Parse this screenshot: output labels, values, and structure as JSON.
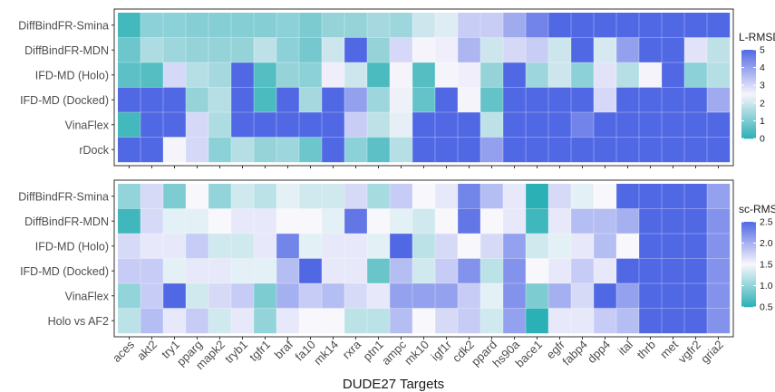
{
  "chart_data": [
    {
      "type": "heatmap",
      "panel": "top",
      "legend_title": "L-RMSD",
      "color_scale": {
        "min": 0,
        "max": 5,
        "low_color": "#2bb0b5",
        "mid_color": "#f6f4fb",
        "high_color": "#5168e4",
        "mid_value": 2.5
      },
      "legend_ticks": [
        0,
        1,
        2,
        3,
        4,
        5
      ],
      "rows": [
        "DiffBindFR-Smina",
        "DiffBindFR-MDN",
        "IFD-MD (Holo)",
        "IFD-MD (Docked)",
        "VinaFlex",
        "rDock"
      ],
      "columns": [
        "aces",
        "akt2",
        "try1",
        "pparg",
        "mapk2",
        "tryb1",
        "tgfr1",
        "braf",
        "fa10",
        "mk14",
        "rxra",
        "ptn1",
        "ampc",
        "mk10",
        "igf1r",
        "cdk2",
        "ppard",
        "hs90a",
        "bace1",
        "egfr",
        "fabp4",
        "dpp4",
        "ital",
        "thrb",
        "met",
        "vgfr2",
        "gria2"
      ],
      "values": [
        [
          0.3,
          1.2,
          1.2,
          1.1,
          1.1,
          1.1,
          1.1,
          1.2,
          1.0,
          1.3,
          1.3,
          1.5,
          1.4,
          2.0,
          2.2,
          3.2,
          3.2,
          3.8,
          4.5,
          5,
          5,
          5,
          5,
          5,
          5,
          5,
          5
        ],
        [
          0.8,
          1.6,
          1.4,
          1.3,
          1.3,
          1.3,
          1.8,
          1.2,
          0.9,
          2.0,
          5,
          1.3,
          3.0,
          2.5,
          2.6,
          3.6,
          2.0,
          3.0,
          3.2,
          2.0,
          5,
          2.1,
          4.0,
          5,
          5,
          2.8,
          1.8
        ],
        [
          0.6,
          0.5,
          3.0,
          1.7,
          1.5,
          5,
          0.5,
          1.3,
          1.2,
          2.6,
          2.0,
          0.4,
          2.5,
          0.5,
          2.5,
          2.6,
          1.3,
          5,
          1.4,
          2.0,
          1.2,
          2.8,
          1.7,
          2.5,
          5,
          1.2,
          1.7
        ],
        [
          5,
          5,
          5,
          1.3,
          1.7,
          5,
          0.4,
          5,
          1.5,
          5,
          4.0,
          1.4,
          2.4,
          0.7,
          5,
          2.5,
          0.7,
          5,
          5,
          5,
          5,
          3.0,
          5,
          5,
          5,
          5,
          3.8
        ],
        [
          0.3,
          5,
          5,
          3.0,
          1.6,
          5,
          5,
          5,
          5,
          5,
          3.2,
          1.8,
          2.3,
          5,
          5,
          5,
          1.8,
          5,
          5,
          5,
          4.5,
          5,
          5,
          5,
          5,
          5,
          5
        ],
        [
          5,
          5,
          2.5,
          3.0,
          1.2,
          1.7,
          1.3,
          1.4,
          0.8,
          5,
          1.2,
          0.6,
          1.7,
          5,
          5,
          5,
          4.0,
          5,
          5,
          5,
          5,
          5,
          5,
          5,
          5,
          5,
          5
        ]
      ]
    },
    {
      "type": "heatmap",
      "panel": "bottom",
      "legend_title": "sc-RMSD",
      "color_scale": {
        "min": 0.5,
        "max": 2.5,
        "low_color": "#2bb0b5",
        "mid_color": "#f8f7fc",
        "high_color": "#5168e4",
        "mid_value": 1.5
      },
      "legend_ticks": [
        0.5,
        1.0,
        1.5,
        2.0,
        2.5
      ],
      "rows": [
        "DiffBindFR-Smina",
        "DiffBindFR-MDN",
        "IFD-MD (Holo)",
        "IFD-MD (Docked)",
        "VinaFlex",
        "Holo vs AF2"
      ],
      "columns": [
        "aces",
        "akt2",
        "try1",
        "pparg",
        "mapk2",
        "tryb1",
        "tgfr1",
        "braf",
        "fa10",
        "mk14",
        "rxra",
        "ptn1",
        "ampc",
        "mk10",
        "igf1r",
        "cdk2",
        "ppard",
        "hs90a",
        "bace1",
        "egfr",
        "fabp4",
        "dpp4",
        "ital",
        "thrb",
        "met",
        "vgfr2",
        "gria2"
      ],
      "values": [
        [
          1.0,
          1.7,
          0.9,
          1.5,
          1.0,
          1.3,
          1.2,
          1.4,
          1.3,
          1.3,
          1.7,
          1.1,
          1.8,
          1.5,
          1.6,
          2.3,
          1.9,
          1.6,
          0.5,
          1.7,
          1.4,
          1.5,
          2.5,
          2.5,
          2.5,
          2.5,
          2.1
        ],
        [
          0.6,
          1.7,
          1.4,
          1.4,
          1.5,
          1.6,
          1.6,
          1.5,
          1.5,
          1.4,
          2.4,
          1.5,
          1.4,
          1.3,
          1.5,
          2.4,
          1.5,
          1.6,
          0.6,
          1.6,
          1.9,
          1.9,
          2.0,
          2.5,
          2.5,
          2.5,
          2.2
        ],
        [
          1.7,
          1.6,
          1.6,
          1.8,
          1.3,
          1.3,
          1.6,
          2.3,
          1.4,
          1.6,
          1.6,
          1.4,
          2.5,
          1.2,
          1.7,
          1.5,
          1.7,
          2.1,
          1.3,
          1.4,
          1.6,
          1.9,
          1.5,
          2.5,
          2.5,
          2.5,
          2.2
        ],
        [
          1.8,
          1.8,
          1.4,
          1.6,
          1.6,
          1.4,
          1.4,
          1.9,
          2.5,
          1.6,
          1.6,
          0.8,
          1.9,
          1.3,
          1.8,
          2.2,
          1.2,
          2.2,
          1.5,
          1.6,
          1.8,
          1.6,
          2.5,
          2.5,
          2.5,
          2.5,
          2.2
        ],
        [
          1.0,
          1.8,
          2.5,
          1.3,
          1.7,
          1.8,
          0.9,
          2.0,
          1.8,
          1.9,
          1.7,
          1.6,
          2.1,
          2.1,
          2.1,
          1.8,
          1.4,
          2.2,
          0.9,
          2.0,
          1.7,
          2.5,
          2.1,
          2.5,
          2.5,
          2.5,
          2.2
        ],
        [
          1.2,
          1.9,
          1.6,
          1.8,
          1.3,
          1.6,
          1.0,
          1.6,
          1.5,
          1.5,
          1.2,
          1.2,
          1.9,
          1.5,
          1.7,
          1.8,
          1.3,
          2.1,
          0.5,
          1.6,
          1.6,
          1.8,
          1.9,
          2.5,
          2.5,
          2.5,
          2.2
        ]
      ]
    }
  ],
  "xlabel": "DUDE27 Targets"
}
